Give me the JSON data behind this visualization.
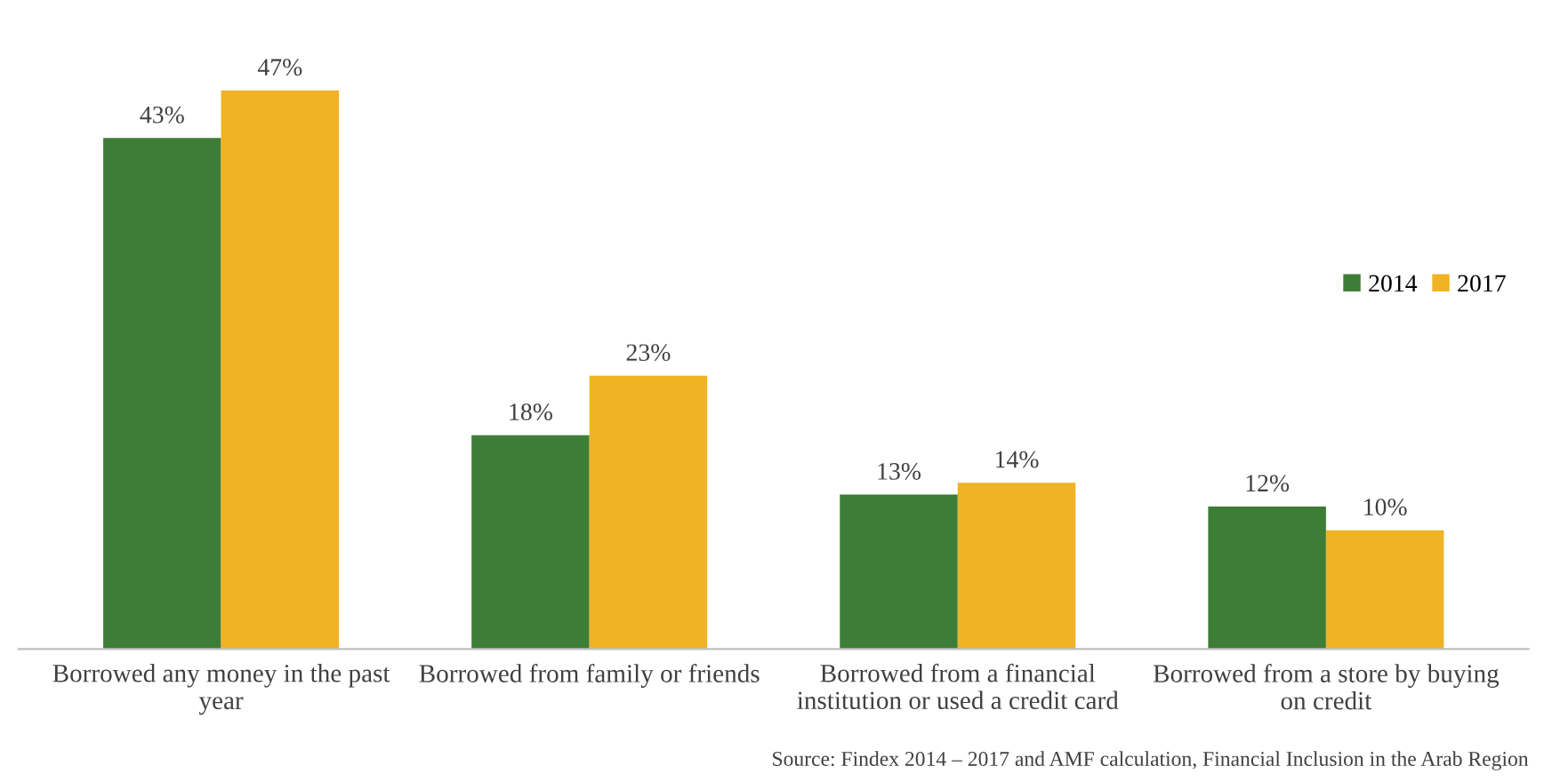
{
  "chart_data": {
    "type": "bar",
    "categories": [
      "Borrowed any money in the past\nyear",
      "Borrowed from family or friends",
      "Borrowed from a financial\ninstitution or used a credit card",
      "Borrowed from a store by buying\non credit"
    ],
    "series": [
      {
        "name": "2014",
        "color": "#3e7d35",
        "values": [
          43,
          18,
          13,
          12
        ],
        "value_labels": [
          "43%",
          "18%",
          "13%",
          "12%"
        ]
      },
      {
        "name": "2017",
        "color": "#f0b323",
        "values": [
          47,
          23,
          14,
          10
        ],
        "value_labels": [
          "47%",
          "23%",
          "14%",
          "10%"
        ]
      }
    ],
    "legend": "right",
    "annotations": [
      "Source: Findex 2014 – 2017 and AMF calculation, Financial Inclusion in the Arab Region"
    ]
  }
}
